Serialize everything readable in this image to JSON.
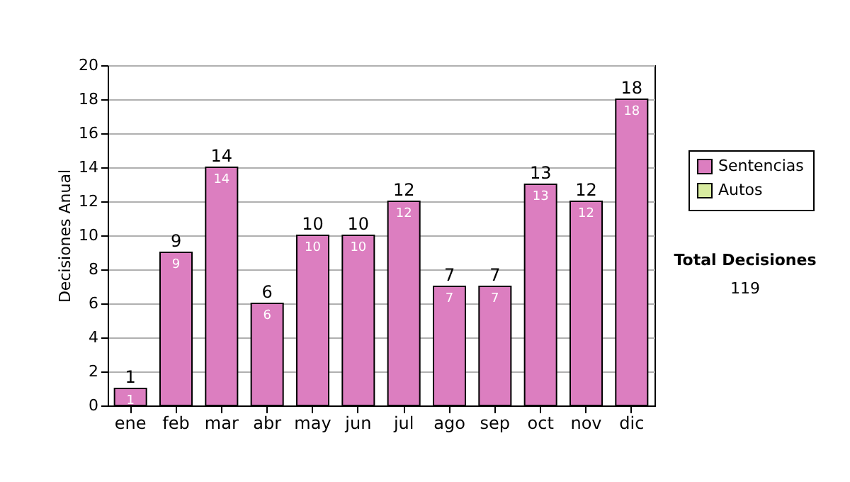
{
  "chart_data": {
    "type": "bar",
    "ylabel": "Decisiones Anual",
    "categories": [
      "ene",
      "feb",
      "mar",
      "abr",
      "may",
      "jun",
      "jul",
      "ago",
      "sep",
      "oct",
      "nov",
      "dic"
    ],
    "series": [
      {
        "name": "Sentencias",
        "color": "#dc7ec0",
        "values": [
          1,
          9,
          14,
          6,
          10,
          10,
          12,
          7,
          7,
          13,
          12,
          18
        ],
        "value_labels": [
          "1",
          "9",
          "14",
          "6",
          "10",
          "10",
          "12",
          "7",
          "7",
          "13",
          "12",
          "18"
        ]
      },
      {
        "name": "Autos",
        "color": "#d8eba0",
        "values": [
          0,
          0,
          0,
          0,
          0,
          0,
          0,
          0,
          0,
          0,
          0,
          0
        ]
      }
    ],
    "stacked": true,
    "totals": [
      "1",
      "9",
      "14",
      "6",
      "10",
      "10",
      "12",
      "7",
      "7",
      "13",
      "12",
      "18"
    ],
    "ylim": [
      0,
      20
    ],
    "yticks": [
      0,
      2,
      4,
      6,
      8,
      10,
      12,
      14,
      16,
      18,
      20
    ],
    "grid": "y",
    "legend": "right",
    "annotations": [
      "Total Decisiones",
      "119"
    ]
  }
}
